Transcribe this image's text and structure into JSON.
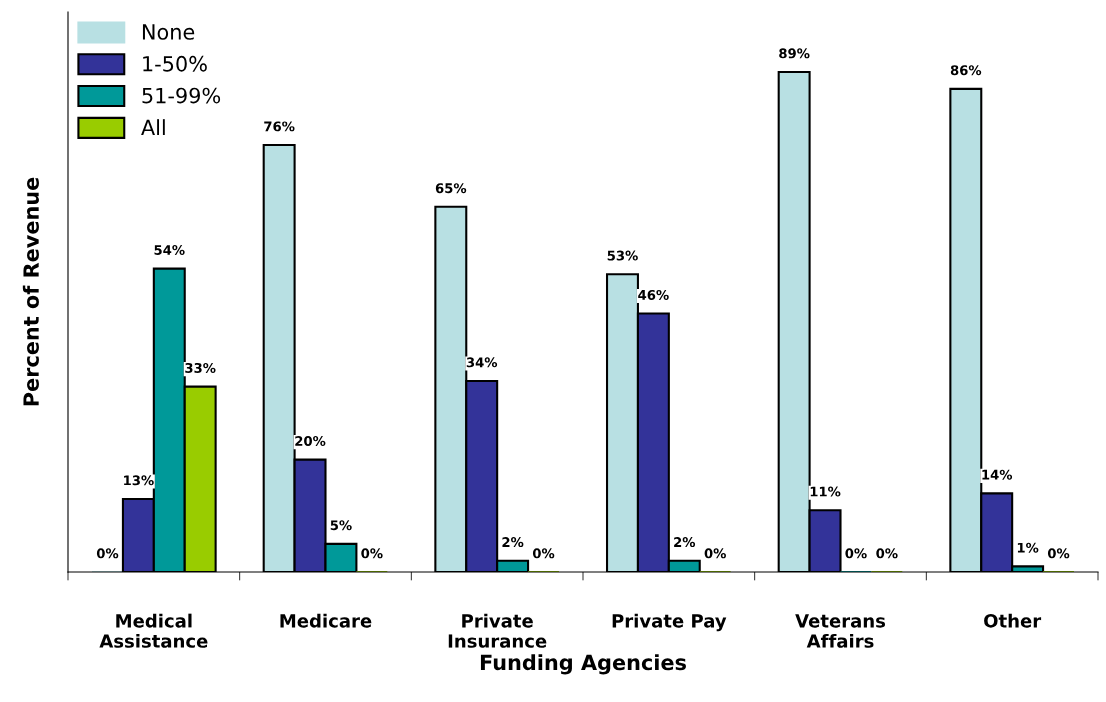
{
  "chart_data": {
    "type": "bar",
    "xlabel": "Funding Agencies",
    "ylabel": "Percent of Revenue",
    "categories": [
      "Medical\nAssistance",
      "Medicare",
      "Private\nInsurance",
      "Private Pay",
      "Veterans\nAffairs",
      "Other"
    ],
    "series": [
      {
        "name": "None",
        "color": "#b8e0e3",
        "values": [
          0,
          76,
          65,
          53,
          89,
          86
        ],
        "value_labels": [
          "0%",
          "76%",
          "65%",
          "53%",
          "89%",
          "86%"
        ]
      },
      {
        "name": "1-50%",
        "color": "#333399",
        "values": [
          13,
          20,
          34,
          46,
          11,
          14
        ],
        "value_labels": [
          "13%",
          "20%",
          "34%",
          "46%",
          "11%",
          "14%"
        ]
      },
      {
        "name": "51-99%",
        "color": "#009999",
        "values": [
          54,
          5,
          2,
          2,
          0,
          1
        ],
        "value_labels": [
          "54%",
          "5%",
          "2%",
          "2%",
          "0%",
          "1%"
        ]
      },
      {
        "name": "All",
        "color": "#99cc00",
        "values": [
          33,
          0,
          0,
          0,
          0,
          0
        ],
        "value_labels": [
          "33%",
          "0%",
          "0%",
          "0%",
          "0%",
          "0%"
        ]
      }
    ],
    "legend": "top left",
    "grid": false
  }
}
